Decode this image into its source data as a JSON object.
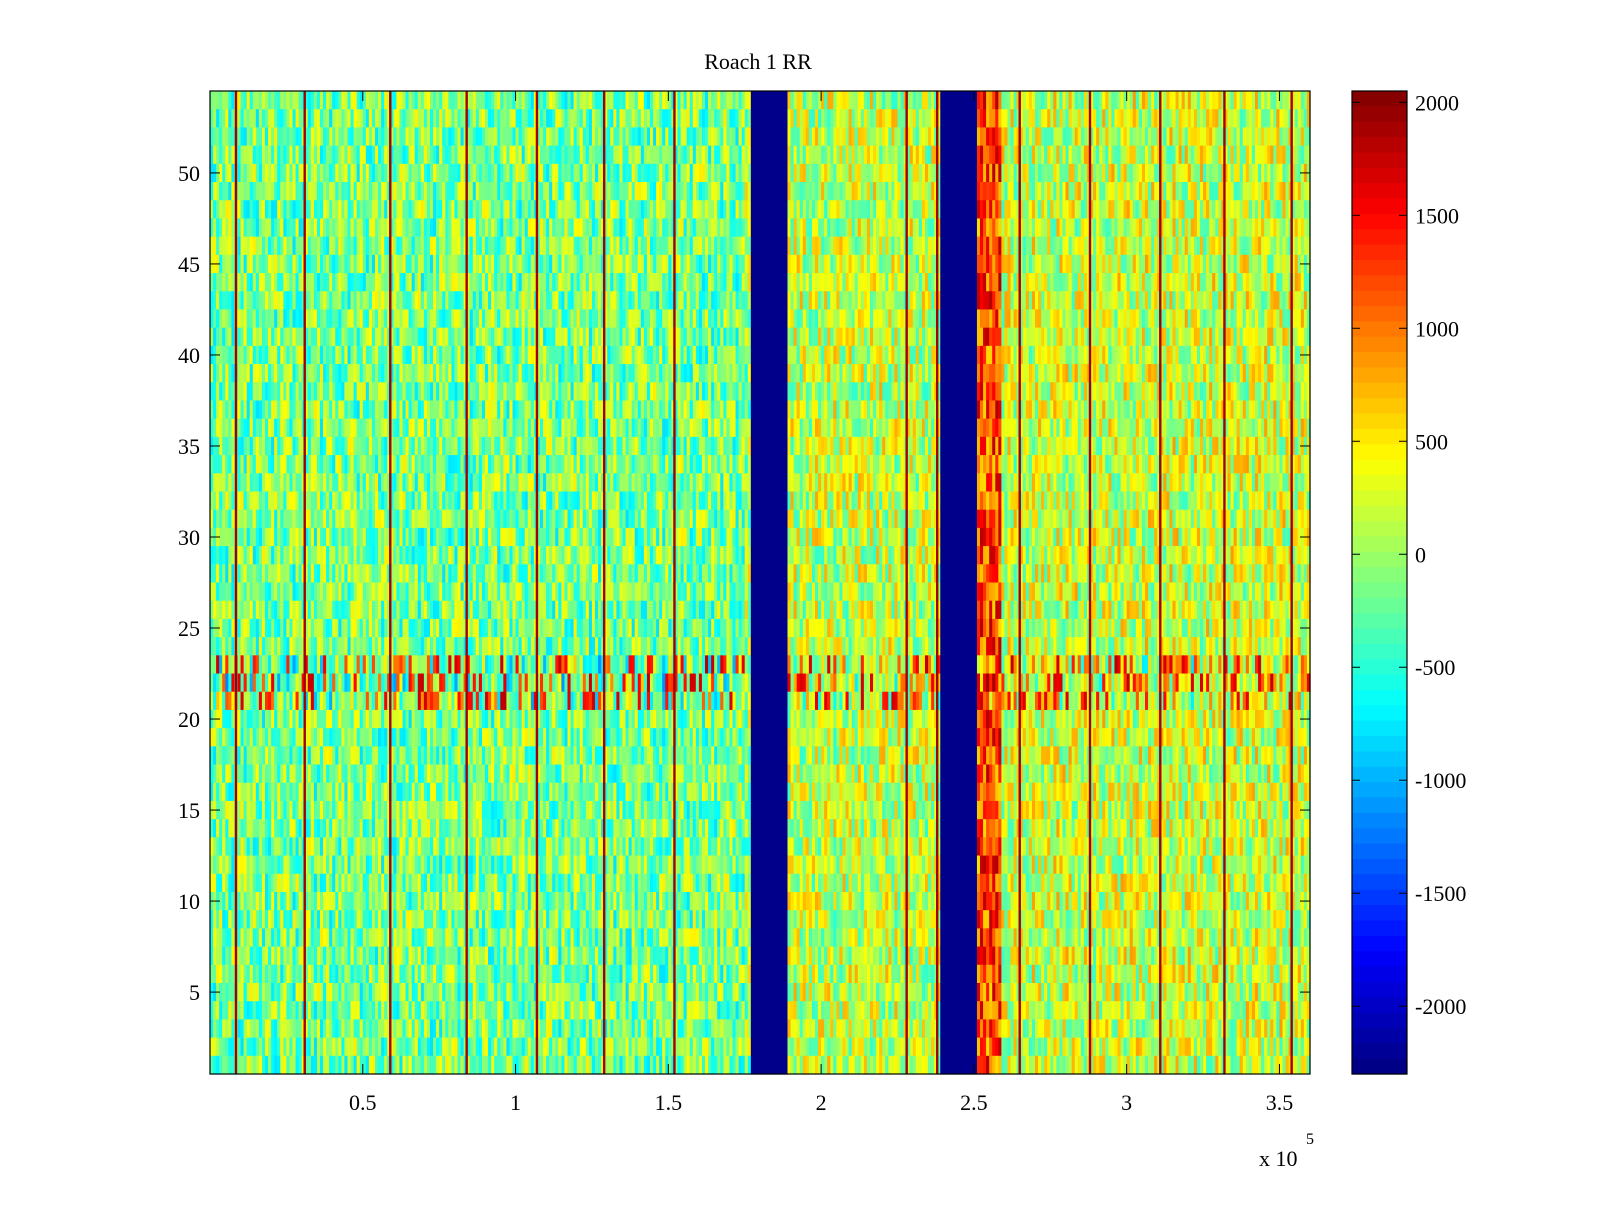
{
  "chart_data": {
    "type": "heatmap",
    "title": "Roach 1 RR",
    "xlabel": "",
    "ylabel": "",
    "x_multiplier_label": {
      "base": "x 10",
      "exponent": "5"
    },
    "xlim": [
      0,
      3.6
    ],
    "ylim": [
      0.5,
      54.5
    ],
    "x_ticks": [
      0.5,
      1,
      1.5,
      2,
      2.5,
      3,
      3.5
    ],
    "x_tick_labels": [
      "0.5",
      "1",
      "1.5",
      "2",
      "2.5",
      "3",
      "3.5"
    ],
    "y_ticks": [
      5,
      10,
      15,
      20,
      25,
      30,
      35,
      40,
      45,
      50
    ],
    "y_tick_labels": [
      "5",
      "10",
      "15",
      "20",
      "25",
      "30",
      "35",
      "40",
      "45",
      "50"
    ],
    "rows": 54,
    "colormap": "jet",
    "clim": [
      -2300,
      2050
    ],
    "colorbar": {
      "ticks": [
        2000,
        1500,
        1000,
        500,
        0,
        -500,
        -1000,
        -1500,
        -2000
      ],
      "tick_labels": [
        "2000",
        "1500",
        "1000",
        "500",
        "0",
        "-500",
        "-1000",
        "-1500",
        "-2000"
      ]
    },
    "baseline_levels": [
      {
        "x_start": 0,
        "x_end": 1.75,
        "value": -150
      },
      {
        "x_start": 1.89,
        "x_end": 2.39,
        "value": 150
      },
      {
        "x_start": 2.51,
        "x_end": 3.6,
        "value": 200
      }
    ],
    "blank_bands": [
      {
        "x_start": 1.77,
        "x_end": 1.89,
        "value": -2250
      },
      {
        "x_start": 2.39,
        "x_end": 2.51,
        "value": -2250
      }
    ],
    "high_band": {
      "x_start": 2.51,
      "x_end": 2.59,
      "value": 1200
    },
    "strong_lines_x": [
      0.085,
      0.31,
      0.59,
      0.84,
      1.07,
      1.29,
      1.52,
      2.28,
      2.38,
      2.65,
      2.88,
      3.11,
      3.32,
      3.54
    ],
    "strong_line_value": 1900,
    "noisy_row_band": {
      "y_start": 21,
      "y_end": 23.5,
      "value": 900
    },
    "noise_amplitude": 650
  }
}
